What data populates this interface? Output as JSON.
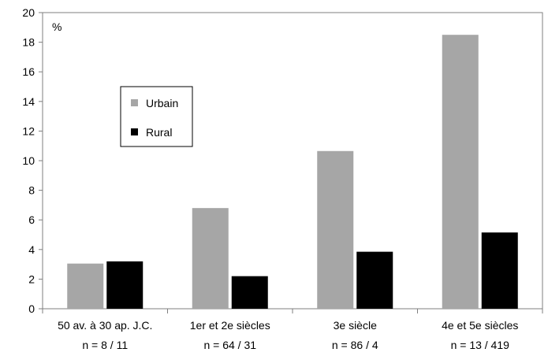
{
  "chart_data": {
    "type": "bar",
    "title": "",
    "xlabel": "",
    "ylabel": "",
    "unit_label": "%",
    "ylim": [
      0,
      20
    ],
    "yticks": [
      0,
      2,
      4,
      6,
      8,
      10,
      12,
      14,
      16,
      18,
      20
    ],
    "grid": false,
    "legend_position": "left-inside",
    "categories": [
      "50 av. à 30 ap. J.C.",
      "1er et 2e siècles",
      "3e siècle",
      "4e et 5e siècles"
    ],
    "category_counts": [
      "n = 8 / 11",
      "n = 64 / 31",
      "n = 86 / 4",
      "n = 13 / 419"
    ],
    "series": [
      {
        "name": "Urbain",
        "color": "#a6a6a6",
        "values": [
          3.05,
          6.8,
          10.65,
          18.5
        ]
      },
      {
        "name": "Rural",
        "color": "#000000",
        "values": [
          3.2,
          2.2,
          3.85,
          5.15
        ]
      }
    ]
  }
}
